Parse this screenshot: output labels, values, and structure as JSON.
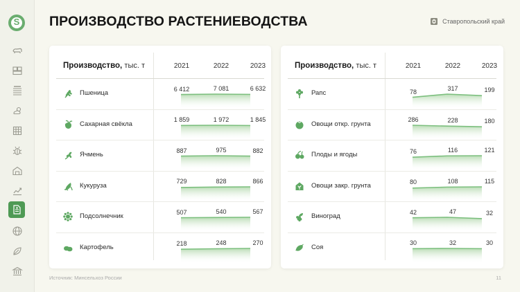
{
  "page": {
    "title": "ПРОИЗВОДСТВО РАСТЕНИЕВОДСТВА",
    "region": "Ставропольский край",
    "source": "Источник: Минсельхоз России",
    "page_number": "11"
  },
  "sidebar": {
    "items": [
      {
        "icon": "cow-icon"
      },
      {
        "icon": "crates-icon"
      },
      {
        "icon": "field-rows-icon"
      },
      {
        "icon": "weather-icon"
      },
      {
        "icon": "grid-table-icon"
      },
      {
        "icon": "bug-icon"
      },
      {
        "icon": "warehouse-icon"
      },
      {
        "icon": "growth-chart-icon"
      },
      {
        "icon": "document-icon",
        "active": true
      },
      {
        "icon": "globe-icon"
      },
      {
        "icon": "leaf-coin-icon"
      },
      {
        "icon": "bank-icon"
      }
    ]
  },
  "colors": {
    "accent": "#4f9a55",
    "line": "#7cbf7e",
    "area_top": "#b9dcb4",
    "area_bottom": "#ffffff",
    "background": "#f7f7ef"
  },
  "panels": [
    {
      "header_label": "Производство,",
      "header_unit": "тыс. т",
      "years": [
        "2021",
        "2022",
        "2023"
      ],
      "rows": [
        {
          "name": "Пшеница",
          "icon": "wheat-icon",
          "values": [
            6412,
            7081,
            6632
          ],
          "labels": [
            "6 412",
            "7 081",
            "6 632"
          ]
        },
        {
          "name": "Сахарная свёкла",
          "icon": "beet-icon",
          "values": [
            1859,
            1972,
            1845
          ],
          "labels": [
            "1 859",
            "1 972",
            "1 845"
          ]
        },
        {
          "name": "Ячмень",
          "icon": "barley-icon",
          "values": [
            887,
            975,
            882
          ],
          "labels": [
            "887",
            "975",
            "882"
          ]
        },
        {
          "name": "Кукуруза",
          "icon": "corn-icon",
          "values": [
            729,
            828,
            866
          ],
          "labels": [
            "729",
            "828",
            "866"
          ]
        },
        {
          "name": "Подсолнечник",
          "icon": "sunflower-icon",
          "values": [
            507,
            540,
            567
          ],
          "labels": [
            "507",
            "540",
            "567"
          ]
        },
        {
          "name": "Картофель",
          "icon": "potato-icon",
          "values": [
            218,
            248,
            270
          ],
          "labels": [
            "218",
            "248",
            "270"
          ]
        }
      ]
    },
    {
      "header_label": "Производство,",
      "header_unit": "тыс. т",
      "years": [
        "2021",
        "2022",
        "2023"
      ],
      "rows": [
        {
          "name": "Рапс",
          "icon": "rapeseed-icon",
          "values": [
            78,
            317,
            199
          ],
          "labels": [
            "78",
            "317",
            "199"
          ]
        },
        {
          "name": "Овощи откр. грунта",
          "icon": "tomato-icon",
          "values": [
            286,
            228,
            180
          ],
          "labels": [
            "286",
            "228",
            "180"
          ]
        },
        {
          "name": "Плоды и ягоды",
          "icon": "berries-icon",
          "values": [
            76,
            116,
            121
          ],
          "labels": [
            "76",
            "116",
            "121"
          ]
        },
        {
          "name": "Овощи закр. грунта",
          "icon": "greenhouse-icon",
          "values": [
            80,
            108,
            115
          ],
          "labels": [
            "80",
            "108",
            "115"
          ]
        },
        {
          "name": "Виноград",
          "icon": "grapes-icon",
          "values": [
            42,
            47,
            32
          ],
          "labels": [
            "42",
            "47",
            "32"
          ]
        },
        {
          "name": "Соя",
          "icon": "soybean-icon",
          "values": [
            30,
            32,
            30
          ],
          "labels": [
            "30",
            "32",
            "30"
          ]
        }
      ]
    }
  ]
}
